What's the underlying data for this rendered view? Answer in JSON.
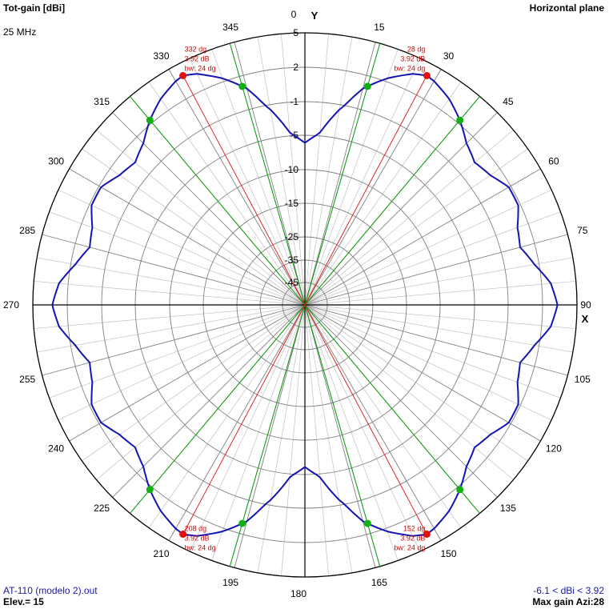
{
  "header": {
    "title": "Tot-gain [dBi]",
    "plane": "Horizontal plane",
    "frequency": "25 MHz"
  },
  "footer": {
    "file": "AT-110 (modelo 2).out",
    "elevation": "Elev.= 15",
    "gain_range": "-6.1 < dBi < 3.92",
    "max_gain": "Max gain Azi:28"
  },
  "axes": {
    "y_label": "Y",
    "x_label": "X"
  },
  "colors": {
    "pattern": "#1414b4",
    "lobe_line": "#e01010",
    "beam_line": "#119911",
    "green_marker": "#10b010",
    "grid": "#808080",
    "text_blue": "#1a1aa6"
  },
  "chart_data": {
    "type": "polar",
    "title": "Tot-gain [dBi]",
    "subtitle": "Horizontal plane",
    "frequency_mhz": 25,
    "elevation_deg": 15,
    "min_dbi": -6.1,
    "max_dbi": 3.92,
    "max_gain_azimuth_deg": 28,
    "angle_ticks": [
      0,
      15,
      30,
      45,
      60,
      75,
      90,
      105,
      120,
      135,
      150,
      165,
      180,
      195,
      210,
      225,
      240,
      255,
      270,
      285,
      300,
      315,
      330,
      345
    ],
    "angle_tick_labels": [
      "0",
      "15",
      "30",
      "45",
      "60",
      "75",
      "90",
      "105",
      "120",
      "135",
      "150",
      "165",
      "180",
      "195",
      "210",
      "225",
      "240",
      "255",
      "270",
      "285",
      "300",
      "315",
      "330",
      "345"
    ],
    "radial_scale_dbi": [
      5,
      2,
      -1,
      -5,
      -10,
      -15,
      -25,
      -35,
      -45
    ],
    "radial_scale_labels": [
      "5",
      "2",
      "-1",
      "-5",
      "-10",
      "-15",
      "-25",
      "-35",
      "-45"
    ],
    "pattern": {
      "azimuth_deg": [
        0,
        5,
        10,
        15,
        20,
        25,
        28,
        30,
        35,
        40,
        45,
        50,
        55,
        60,
        65,
        70,
        75,
        80,
        85,
        90
      ],
      "gain_dbi": [
        -6.1,
        -4.6,
        -1.6,
        0.8,
        2.3,
        3.5,
        3.92,
        3.8,
        3.2,
        2.3,
        1.2,
        0.6,
        1.0,
        1.8,
        1.8,
        1.0,
        0.7,
        1.6,
        2.8,
        3.3
      ],
      "symmetry": "mirrored about X and Y axes"
    },
    "max_lobes": [
      {
        "azimuth_label": "28 dg",
        "gain_label": "3.92 dB",
        "bw_label": "bw: 24 dg",
        "azimuth_deg": 28
      },
      {
        "azimuth_label": "332 dg",
        "gain_label": "3.92 dB",
        "bw_label": "bw: 24 dg",
        "azimuth_deg": 332
      },
      {
        "azimuth_label": "152 dg",
        "gain_label": "3.92 dB",
        "bw_label": "bw: 24 dg",
        "azimuth_deg": 152
      },
      {
        "azimuth_label": "208 dg",
        "gain_label": "3.92 dB",
        "bw_label": "bw: 24 dg",
        "azimuth_deg": 208
      }
    ],
    "half_power_points_deg": [
      16,
      40,
      320,
      344,
      140,
      164,
      196,
      220
    ],
    "beamwidth_deg": 24
  }
}
